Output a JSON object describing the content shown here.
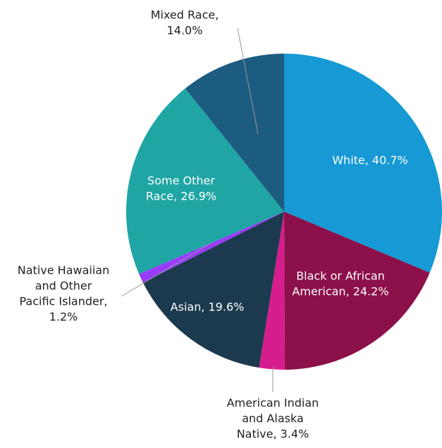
{
  "chart_data": {
    "type": "pie",
    "values": [
      40.7,
      24.2,
      3.4,
      19.6,
      1.2,
      26.9,
      14.0
    ],
    "value_labels": [
      [
        "White, 40.7%"
      ],
      [
        "Black or African",
        "American, 24.2%"
      ],
      [
        "American Indian",
        "and Alaska",
        "Native, 3.4%"
      ],
      [
        "Asian, 19.6%"
      ],
      [
        "Native Hawaiian",
        "and Other",
        "Pacific Islander,",
        "1.2%"
      ],
      [
        "Some Other",
        "Race, 26.9%"
      ],
      [
        "Mixed Race,",
        "14.0%"
      ]
    ],
    "colors": [
      "#1699d4",
      "#8c1049",
      "#d61d8d",
      "#1b3a4e",
      "#9a3cfc",
      "#1fa5a4",
      "#1c5c80"
    ]
  }
}
